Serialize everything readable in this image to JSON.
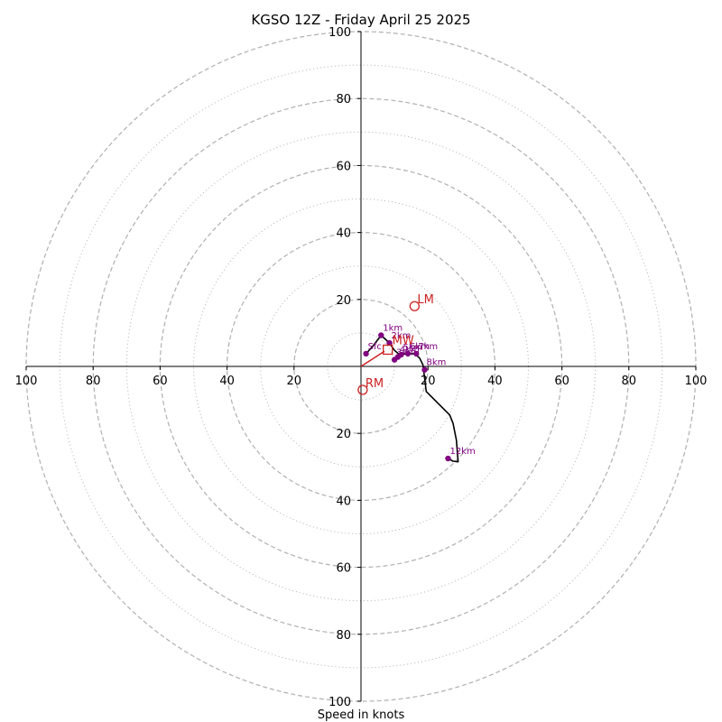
{
  "chart_data": {
    "type": "scatter",
    "title": "KGSO 12Z - Friday April 25 2025",
    "xlabel": "Speed in knots",
    "axis_range": [
      -100,
      100
    ],
    "ring_dashed": [
      20,
      40,
      60,
      80,
      100
    ],
    "ring_dotted": [
      10,
      30,
      50,
      70,
      90
    ],
    "x_ticks": [
      "100",
      "80",
      "60",
      "40",
      "20",
      "20",
      "40",
      "60",
      "80",
      "100"
    ],
    "x_tick_values": [
      -100,
      -80,
      -60,
      -40,
      -20,
      20,
      40,
      60,
      80,
      100
    ],
    "y_ticks": [
      "100",
      "80",
      "60",
      "40",
      "20",
      "20",
      "40",
      "60",
      "80",
      "100"
    ],
    "y_tick_values": [
      100,
      80,
      60,
      40,
      20,
      -20,
      -40,
      -60,
      -80,
      -100
    ],
    "colors": {
      "hodograph": "#000000",
      "height_marker": "#800080",
      "motion": "#cc2222",
      "ring": "#b0b0b0",
      "axis": "#000000"
    },
    "hodograph_line": [
      [
        1.5,
        3.8
      ],
      [
        3.5,
        6.0
      ],
      [
        6.0,
        9.3
      ],
      [
        8.5,
        7.0
      ],
      [
        10.0,
        4.8
      ],
      [
        11.5,
        3.5
      ],
      [
        13.5,
        3.8
      ],
      [
        16.0,
        3.8
      ],
      [
        17.5,
        2.5
      ],
      [
        18.5,
        0.5
      ],
      [
        19.0,
        -3.5
      ],
      [
        19.5,
        -7.5
      ],
      [
        23.0,
        -11.0
      ],
      [
        26.5,
        -14.5
      ],
      [
        27.5,
        -17.0
      ],
      [
        28.5,
        -22.0
      ],
      [
        29.0,
        -28.5
      ],
      [
        27.5,
        -28.3
      ],
      [
        26.0,
        -27.5
      ]
    ],
    "height_markers": [
      {
        "label": "Sfc",
        "u": 1.5,
        "v": 3.8
      },
      {
        "label": "1km",
        "u": 6.0,
        "v": 9.3
      },
      {
        "label": "2km",
        "u": 8.5,
        "v": 7.0
      },
      {
        "label": "3km",
        "u": 10.0,
        "v": 2.0
      },
      {
        "label": "4km",
        "u": 11.0,
        "v": 2.8
      },
      {
        "label": "5km",
        "u": 12.0,
        "v": 3.5
      },
      {
        "label": "6km",
        "u": 14.0,
        "v": 3.8
      },
      {
        "label": "7km",
        "u": 16.5,
        "v": 3.8
      },
      {
        "label": "8km",
        "u": 19.0,
        "v": -1.0
      },
      {
        "label": "12km",
        "u": 26.0,
        "v": -27.5
      }
    ],
    "storm_motion": {
      "mean_wind": {
        "label": "MW",
        "u": 8.0,
        "v": 5.0
      },
      "left_mover": {
        "label": "LM",
        "u": 16.0,
        "v": 18.0
      },
      "right_mover": {
        "label": "RM",
        "u": 0.5,
        "v": -7.0
      },
      "vector_to": [
        7.0,
        4.5
      ]
    }
  }
}
